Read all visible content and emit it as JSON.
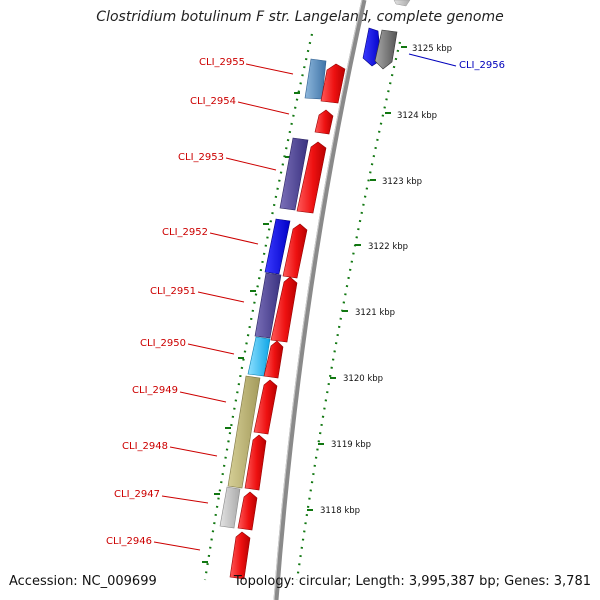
{
  "title": "Clostridium botulinum F str. Langeland, complete genome",
  "footer": {
    "accession": "Accession: NC_009699",
    "stats": "Topology: circular; Length: 3,995,387 bp; Genes: 3,781"
  },
  "colors": {
    "forward_gene": "#ee1111",
    "label_red": "#cc0000",
    "label_blue": "#0000bb",
    "tick_green": "#117711",
    "backbone": "#888888"
  },
  "ruler_labels": [
    "3125 kbp",
    "3124 kbp",
    "3123 kbp",
    "3122 kbp",
    "3121 kbp",
    "3120 kbp",
    "3119 kbp",
    "3118 kbp"
  ],
  "gene_labels": [
    "CLI_2955",
    "CLI_2954",
    "CLI_2953",
    "CLI_2952",
    "CLI_2951",
    "CLI_2950",
    "CLI_2949",
    "CLI_2948",
    "CLI_2947",
    "CLI_2946",
    "CLI_2956"
  ]
}
